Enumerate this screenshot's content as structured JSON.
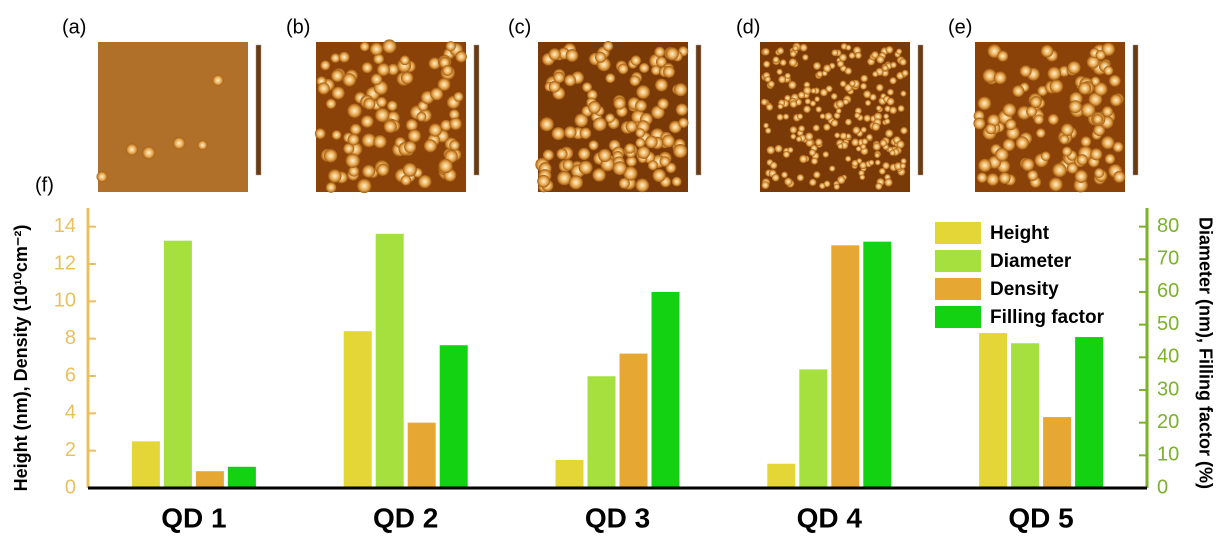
{
  "panel_labels": [
    "(a)",
    "(b)",
    "(c)",
    "(d)",
    "(e)"
  ],
  "chart_data": {
    "type": "bar",
    "label": "(f)",
    "categories": [
      "QD 1",
      "QD 2",
      "QD 3",
      "QD 4",
      "QD 5"
    ],
    "ylabel": "Height (nm), Density (10¹⁰cm⁻²)",
    "y2label": "Diameter (nm), Filling factor (%)",
    "ylim": [
      0,
      15
    ],
    "yticks": [
      0,
      2,
      4,
      6,
      8,
      10,
      12,
      14
    ],
    "ycolor": "#e8c060",
    "y2lim": [
      0,
      85.7
    ],
    "y2ticks": [
      0,
      10,
      20,
      30,
      40,
      50,
      60,
      70,
      80
    ],
    "y2color": "#7cb22a",
    "legend": "upper right",
    "series": [
      {
        "name": "Height",
        "color": "#e5d638",
        "axis": "y",
        "values": [
          2.5,
          8.4,
          1.5,
          1.3,
          8.3
        ]
      },
      {
        "name": "Diameter",
        "color": "#a6e03e",
        "axis": "y2",
        "values": [
          75.7,
          77.8,
          34.2,
          36.3,
          44.3
        ]
      },
      {
        "name": "Density",
        "color": "#e6a832",
        "axis": "y",
        "values": [
          0.9,
          3.5,
          7.2,
          13.0,
          3.8
        ]
      },
      {
        "name": "Filling factor",
        "color": "#12d212",
        "axis": "y2",
        "values": [
          6.5,
          43.7,
          60.0,
          75.4,
          46.2
        ]
      }
    ]
  }
}
